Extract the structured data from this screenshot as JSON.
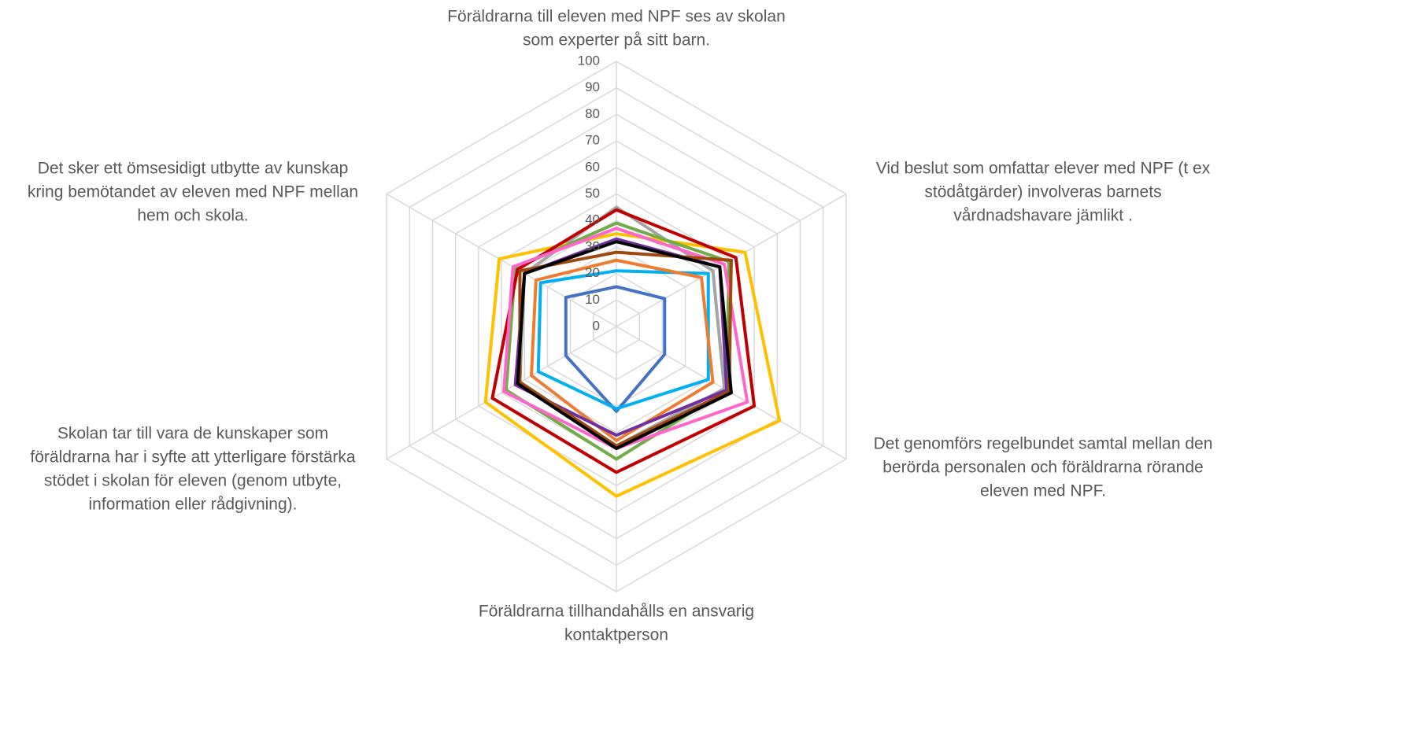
{
  "chart_data": {
    "type": "radar",
    "categories": [
      [
        "Föräldrarna till eleven med NPF ses av skolan",
        "som experter på sitt barn."
      ],
      [
        "Vid beslut som omfattar elever med NPF (t ex",
        "stödåtgärder) involveras barnets",
        "vårdnadshavare jämlikt ."
      ],
      [
        "Det genomförs regelbundet samtal mellan den",
        "berörda personalen och föräldrarna rörande",
        "eleven med NPF."
      ],
      [
        "Föräldrarna tillhandahålls en ansvarig",
        "kontaktperson"
      ],
      [
        "Skolan tar till vara de kunskaper som",
        "föräldrarna har i syfte att ytterligare förstärka",
        "stödet i skolan för eleven (genom utbyte,",
        "information eller rådgivning)."
      ],
      [
        "Det sker ett ömsesidigt utbytte av kunskap",
        "kring bemötandet av eleven med NPF mellan",
        "hem och skola."
      ]
    ],
    "series": [
      {
        "color": "#4472c4",
        "values": [
          15,
          21,
          21,
          32,
          22,
          22
        ]
      },
      {
        "color": "#00b0f0",
        "values": [
          21,
          40,
          40,
          31,
          34,
          33
        ]
      },
      {
        "color": "#ed7d31",
        "values": [
          25,
          37,
          42,
          43,
          37,
          35
        ]
      },
      {
        "color": "#a5a5a5",
        "values": [
          45,
          42,
          47,
          45,
          42,
          40
        ]
      },
      {
        "color": "#ffc000",
        "values": [
          35,
          56,
          71,
          64,
          57,
          51
        ]
      },
      {
        "color": "#70ad47",
        "values": [
          39,
          49,
          48,
          50,
          48,
          44
        ]
      },
      {
        "color": "#c00000",
        "values": [
          44,
          52,
          60,
          55,
          54,
          43
        ]
      },
      {
        "color": "#ff66cc",
        "values": [
          37,
          47,
          57,
          46,
          49,
          45
        ]
      },
      {
        "color": "#7030a0",
        "values": [
          33,
          45,
          48,
          41,
          44,
          40
        ]
      },
      {
        "color": "#9e480e",
        "values": [
          28,
          50,
          49,
          45,
          42,
          42
        ]
      },
      {
        "color": "#000000",
        "values": [
          32,
          45,
          50,
          46,
          43,
          40
        ]
      }
    ],
    "ylim": [
      0,
      100
    ],
    "yticks": [
      0,
      10,
      20,
      30,
      40,
      50,
      60,
      70,
      80,
      90,
      100
    ],
    "grid": true
  }
}
